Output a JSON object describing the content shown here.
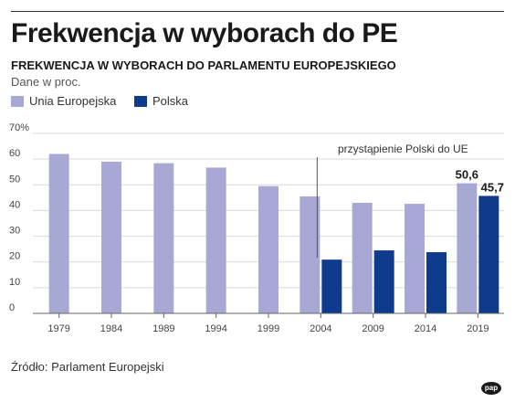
{
  "header": {
    "title": "Frekwencja w wyborach do PE",
    "subtitle": "FREKWENCJA W WYBORACH DO PARLAMENTU EUROPEJSKIEGO",
    "unit_note": "Dane w proc."
  },
  "legend": [
    {
      "label": "Unia Europejska",
      "color": "#a7a9d4"
    },
    {
      "label": "Polska",
      "color": "#0f3b8c"
    }
  ],
  "chart_data": {
    "type": "bar",
    "categories": [
      "1979",
      "1984",
      "1989",
      "1994",
      "1999",
      "2004",
      "2009",
      "2014",
      "2019"
    ],
    "series": [
      {
        "name": "Unia Europejska",
        "color": "#a7a9d4",
        "values": [
          62.0,
          59.0,
          58.4,
          56.7,
          49.5,
          45.5,
          43.0,
          42.6,
          50.6
        ]
      },
      {
        "name": "Polska",
        "color": "#0f3b8c",
        "values": [
          null,
          null,
          null,
          null,
          null,
          20.9,
          24.5,
          23.8,
          45.7
        ]
      }
    ],
    "ylim": [
      0,
      70
    ],
    "yticks": [
      "0",
      "10",
      "20",
      "30",
      "40",
      "50",
      "60",
      "70%"
    ],
    "value_labels": [
      {
        "series": 0,
        "index": 8,
        "text": "50,6"
      },
      {
        "series": 1,
        "index": 8,
        "text": "45,7"
      }
    ],
    "annotation": {
      "text": "przystąpienie Polski do UE",
      "category_index": 5
    }
  },
  "footer": {
    "source": "Źródło: Parlament Europejski",
    "logo_text": "pap"
  }
}
